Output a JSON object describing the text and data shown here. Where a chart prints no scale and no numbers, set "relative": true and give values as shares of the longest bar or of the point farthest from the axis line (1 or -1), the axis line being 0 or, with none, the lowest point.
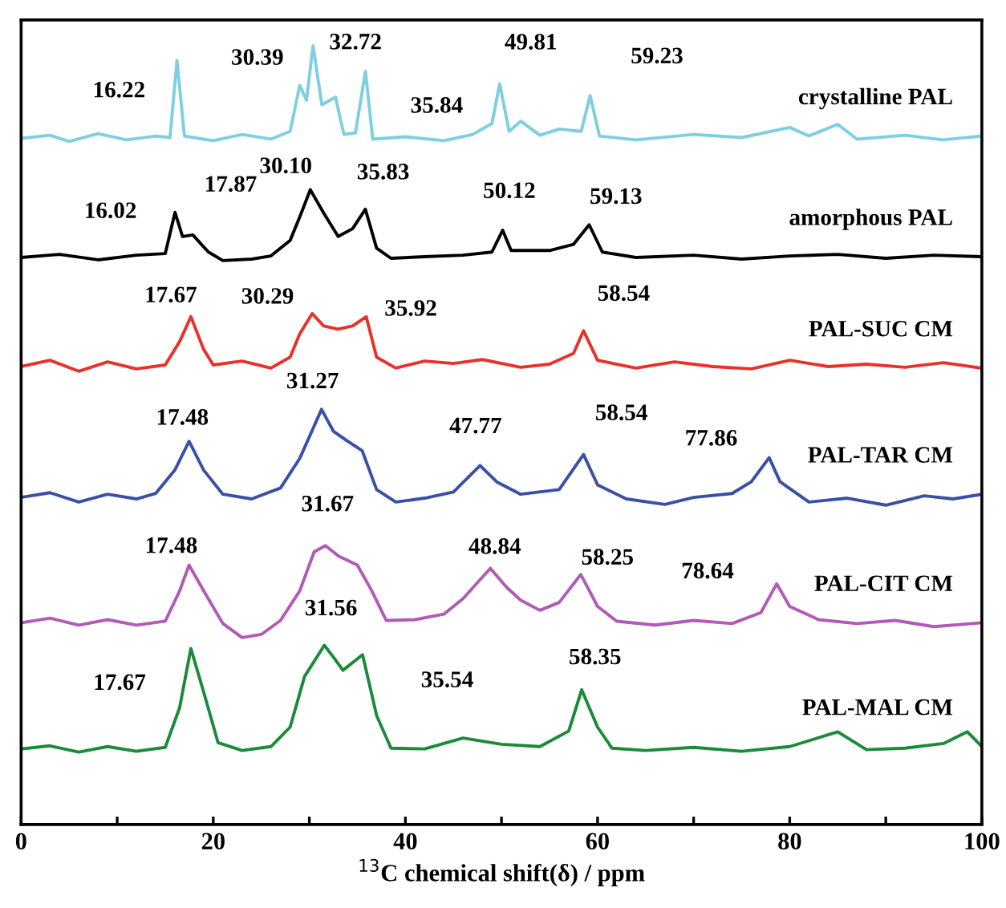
{
  "chart_data": {
    "type": "line",
    "relative": true,
    "xlabel": "$^{13}$C chemical shift(δ) / ppm",
    "xlim": [
      0,
      100
    ],
    "xticks": [
      0,
      {
        "value": 10,
        "label": null
      },
      20,
      {
        "value": 30,
        "label": null
      },
      40,
      {
        "value": 50,
        "label": null
      },
      60,
      {
        "value": 70,
        "label": null
      },
      80,
      {
        "value": 90,
        "label": null
      },
      100
    ],
    "tick_labels": "x",
    "grid": false,
    "legend": false,
    "marker": "none",
    "line_style": "solid",
    "series": [
      {
        "name": "crystalline PAL",
        "color": "#7ecfe0",
        "x": [
          0,
          3,
          5,
          8,
          11,
          14,
          15.5,
          16.22,
          17,
          20,
          23,
          26,
          28,
          29,
          29.7,
          30.39,
          31.3,
          32.72,
          33.6,
          34.8,
          35.84,
          36.6,
          40,
          44,
          47,
          49,
          49.81,
          50.8,
          52,
          54,
          56,
          58.3,
          59.23,
          60.2,
          64,
          70,
          75,
          80,
          82,
          85,
          87,
          92,
          96,
          100
        ],
        "values": [
          0.881,
          0.885,
          0.877,
          0.887,
          0.879,
          0.884,
          0.882,
          0.981,
          0.884,
          0.878,
          0.886,
          0.88,
          0.89,
          0.949,
          0.93,
          1.0,
          0.924,
          0.934,
          0.886,
          0.888,
          0.967,
          0.88,
          0.883,
          0.878,
          0.886,
          0.9,
          0.951,
          0.89,
          0.903,
          0.885,
          0.893,
          0.89,
          0.936,
          0.884,
          0.879,
          0.886,
          0.882,
          0.895,
          0.884,
          0.899,
          0.88,
          0.885,
          0.879,
          0.884
        ]
      },
      {
        "name": "amorphous PAL",
        "color": "#000000",
        "x": [
          0,
          4,
          8,
          12,
          15,
          16.02,
          16.8,
          17.87,
          19.5,
          21,
          24,
          26,
          28,
          29,
          30.1,
          31.5,
          33,
          34.5,
          35.83,
          37,
          38.5,
          42,
          46,
          49,
          50.12,
          51,
          55,
          57.5,
          59.13,
          60.5,
          64,
          70,
          75,
          80,
          85,
          90,
          95,
          100
        ],
        "values": [
          0.728,
          0.732,
          0.725,
          0.731,
          0.733,
          0.786,
          0.755,
          0.757,
          0.735,
          0.724,
          0.726,
          0.73,
          0.75,
          0.78,
          0.815,
          0.785,
          0.755,
          0.765,
          0.79,
          0.74,
          0.727,
          0.729,
          0.731,
          0.735,
          0.763,
          0.737,
          0.737,
          0.745,
          0.77,
          0.735,
          0.728,
          0.731,
          0.726,
          0.73,
          0.732,
          0.727,
          0.731,
          0.729
        ]
      },
      {
        "name": "PAL-SUC CM",
        "color": "#e8312a",
        "x": [
          0,
          3,
          6,
          9,
          12,
          15,
          16.5,
          17.67,
          19,
          20,
          23,
          26,
          28,
          29,
          30.29,
          31.5,
          33,
          34.5,
          35.92,
          37,
          39,
          42,
          45,
          48,
          52,
          55,
          57.5,
          58.54,
          60,
          64,
          68,
          72,
          76,
          80,
          84,
          88,
          92,
          96,
          100
        ],
        "values": [
          0.588,
          0.596,
          0.582,
          0.594,
          0.585,
          0.59,
          0.62,
          0.652,
          0.61,
          0.59,
          0.595,
          0.586,
          0.6,
          0.63,
          0.656,
          0.64,
          0.636,
          0.64,
          0.652,
          0.6,
          0.586,
          0.595,
          0.592,
          0.597,
          0.587,
          0.591,
          0.605,
          0.634,
          0.596,
          0.586,
          0.594,
          0.588,
          0.585,
          0.596,
          0.588,
          0.591,
          0.587,
          0.593,
          0.586
        ]
      },
      {
        "name": "PAL-TAR CM",
        "color": "#3a4fa8",
        "x": [
          0,
          3,
          6,
          9,
          12,
          14,
          16,
          17.48,
          19,
          21,
          24,
          27,
          29,
          31.27,
          32.5,
          34,
          35.5,
          37,
          39,
          42,
          45,
          47.77,
          49.5,
          52,
          56,
          58.54,
          60,
          63,
          67,
          70,
          74,
          76,
          77.86,
          79,
          82,
          86,
          90,
          94,
          97,
          100
        ],
        "values": [
          0.42,
          0.426,
          0.414,
          0.424,
          0.418,
          0.425,
          0.455,
          0.492,
          0.455,
          0.424,
          0.418,
          0.432,
          0.47,
          0.533,
          0.505,
          0.492,
          0.48,
          0.43,
          0.414,
          0.419,
          0.427,
          0.461,
          0.44,
          0.424,
          0.43,
          0.475,
          0.436,
          0.418,
          0.411,
          0.42,
          0.425,
          0.44,
          0.471,
          0.44,
          0.414,
          0.419,
          0.41,
          0.422,
          0.418,
          0.424
        ]
      },
      {
        "name": "PAL-CIT CM",
        "color": "#b25ab8",
        "x": [
          0,
          3,
          6,
          9,
          12,
          15,
          16.5,
          17.48,
          19,
          21,
          23,
          25,
          27,
          29,
          30.5,
          31.67,
          33,
          35,
          36.5,
          38,
          41,
          44,
          46,
          48.84,
          50.5,
          52,
          54,
          56,
          58.25,
          60,
          62,
          66,
          70,
          74,
          77,
          78.64,
          80,
          83,
          87,
          91,
          95,
          100
        ],
        "values": [
          0.259,
          0.265,
          0.256,
          0.263,
          0.256,
          0.261,
          0.3,
          0.333,
          0.3,
          0.258,
          0.24,
          0.244,
          0.262,
          0.3,
          0.35,
          0.358,
          0.345,
          0.333,
          0.3,
          0.262,
          0.263,
          0.27,
          0.29,
          0.329,
          0.305,
          0.288,
          0.275,
          0.285,
          0.321,
          0.28,
          0.261,
          0.256,
          0.262,
          0.258,
          0.272,
          0.309,
          0.28,
          0.263,
          0.258,
          0.262,
          0.254,
          0.259
        ]
      },
      {
        "name": "PAL-MAL CM",
        "color": "#1b8a3a",
        "x": [
          0,
          3,
          6,
          9,
          12,
          15,
          16.5,
          17.67,
          19,
          20.5,
          23,
          26,
          28,
          29.5,
          31.56,
          32.5,
          33.5,
          35.54,
          37,
          38.5,
          42,
          46,
          50,
          54,
          57,
          58.35,
          60,
          61.5,
          65,
          70,
          75,
          80,
          85,
          88,
          92,
          96,
          98.5,
          100
        ],
        "values": [
          0.097,
          0.101,
          0.093,
          0.1,
          0.094,
          0.099,
          0.15,
          0.226,
          0.17,
          0.105,
          0.095,
          0.1,
          0.125,
          0.19,
          0.23,
          0.215,
          0.198,
          0.218,
          0.14,
          0.098,
          0.097,
          0.111,
          0.103,
          0.1,
          0.12,
          0.173,
          0.125,
          0.098,
          0.095,
          0.099,
          0.094,
          0.1,
          0.119,
          0.096,
          0.098,
          0.104,
          0.119,
          0.1
        ]
      }
    ],
    "annotations": [
      {
        "text": "16.22",
        "x": 16.22,
        "y": 0.981
      },
      {
        "text": "30.39",
        "x": 30.39,
        "y": 1.0
      },
      {
        "text": "32.72",
        "x": 32.72,
        "y": 0.934
      },
      {
        "text": "35.84",
        "x": 35.84,
        "y": 0.967
      },
      {
        "text": "49.81",
        "x": 49.81,
        "y": 0.951
      },
      {
        "text": "59.23",
        "x": 59.23,
        "y": 0.936
      },
      {
        "text": "16.02",
        "x": 16.02,
        "y": 0.786
      },
      {
        "text": "17.87",
        "x": 17.87,
        "y": 0.757
      },
      {
        "text": "30.10",
        "x": 30.1,
        "y": 0.815
      },
      {
        "text": "35.83",
        "x": 35.83,
        "y": 0.79
      },
      {
        "text": "50.12",
        "x": 50.12,
        "y": 0.763
      },
      {
        "text": "59.13",
        "x": 59.13,
        "y": 0.77
      },
      {
        "text": "17.67",
        "x": 17.67,
        "y": 0.652
      },
      {
        "text": "30.29",
        "x": 30.29,
        "y": 0.656
      },
      {
        "text": "35.92",
        "x": 35.92,
        "y": 0.652
      },
      {
        "text": "58.54",
        "x": 58.54,
        "y": 0.634
      },
      {
        "text": "17.48",
        "x": 17.48,
        "y": 0.492
      },
      {
        "text": "31.27",
        "x": 31.27,
        "y": 0.533
      },
      {
        "text": "47.77",
        "x": 47.77,
        "y": 0.461
      },
      {
        "text": "58.54",
        "x": 58.54,
        "y": 0.475
      },
      {
        "text": "77.86",
        "x": 77.86,
        "y": 0.471
      },
      {
        "text": "17.48",
        "x": 17.48,
        "y": 0.333
      },
      {
        "text": "31.67",
        "x": 31.67,
        "y": 0.358
      },
      {
        "text": "48.84",
        "x": 48.84,
        "y": 0.329
      },
      {
        "text": "58.25",
        "x": 58.25,
        "y": 0.321
      },
      {
        "text": "78.64",
        "x": 78.64,
        "y": 0.309
      },
      {
        "text": "17.67",
        "x": 17.67,
        "y": 0.226
      },
      {
        "text": "31.56",
        "x": 31.56,
        "y": 0.23
      },
      {
        "text": "35.54",
        "x": 35.54,
        "y": 0.218
      },
      {
        "text": "58.35",
        "x": 58.35,
        "y": 0.173
      }
    ]
  }
}
